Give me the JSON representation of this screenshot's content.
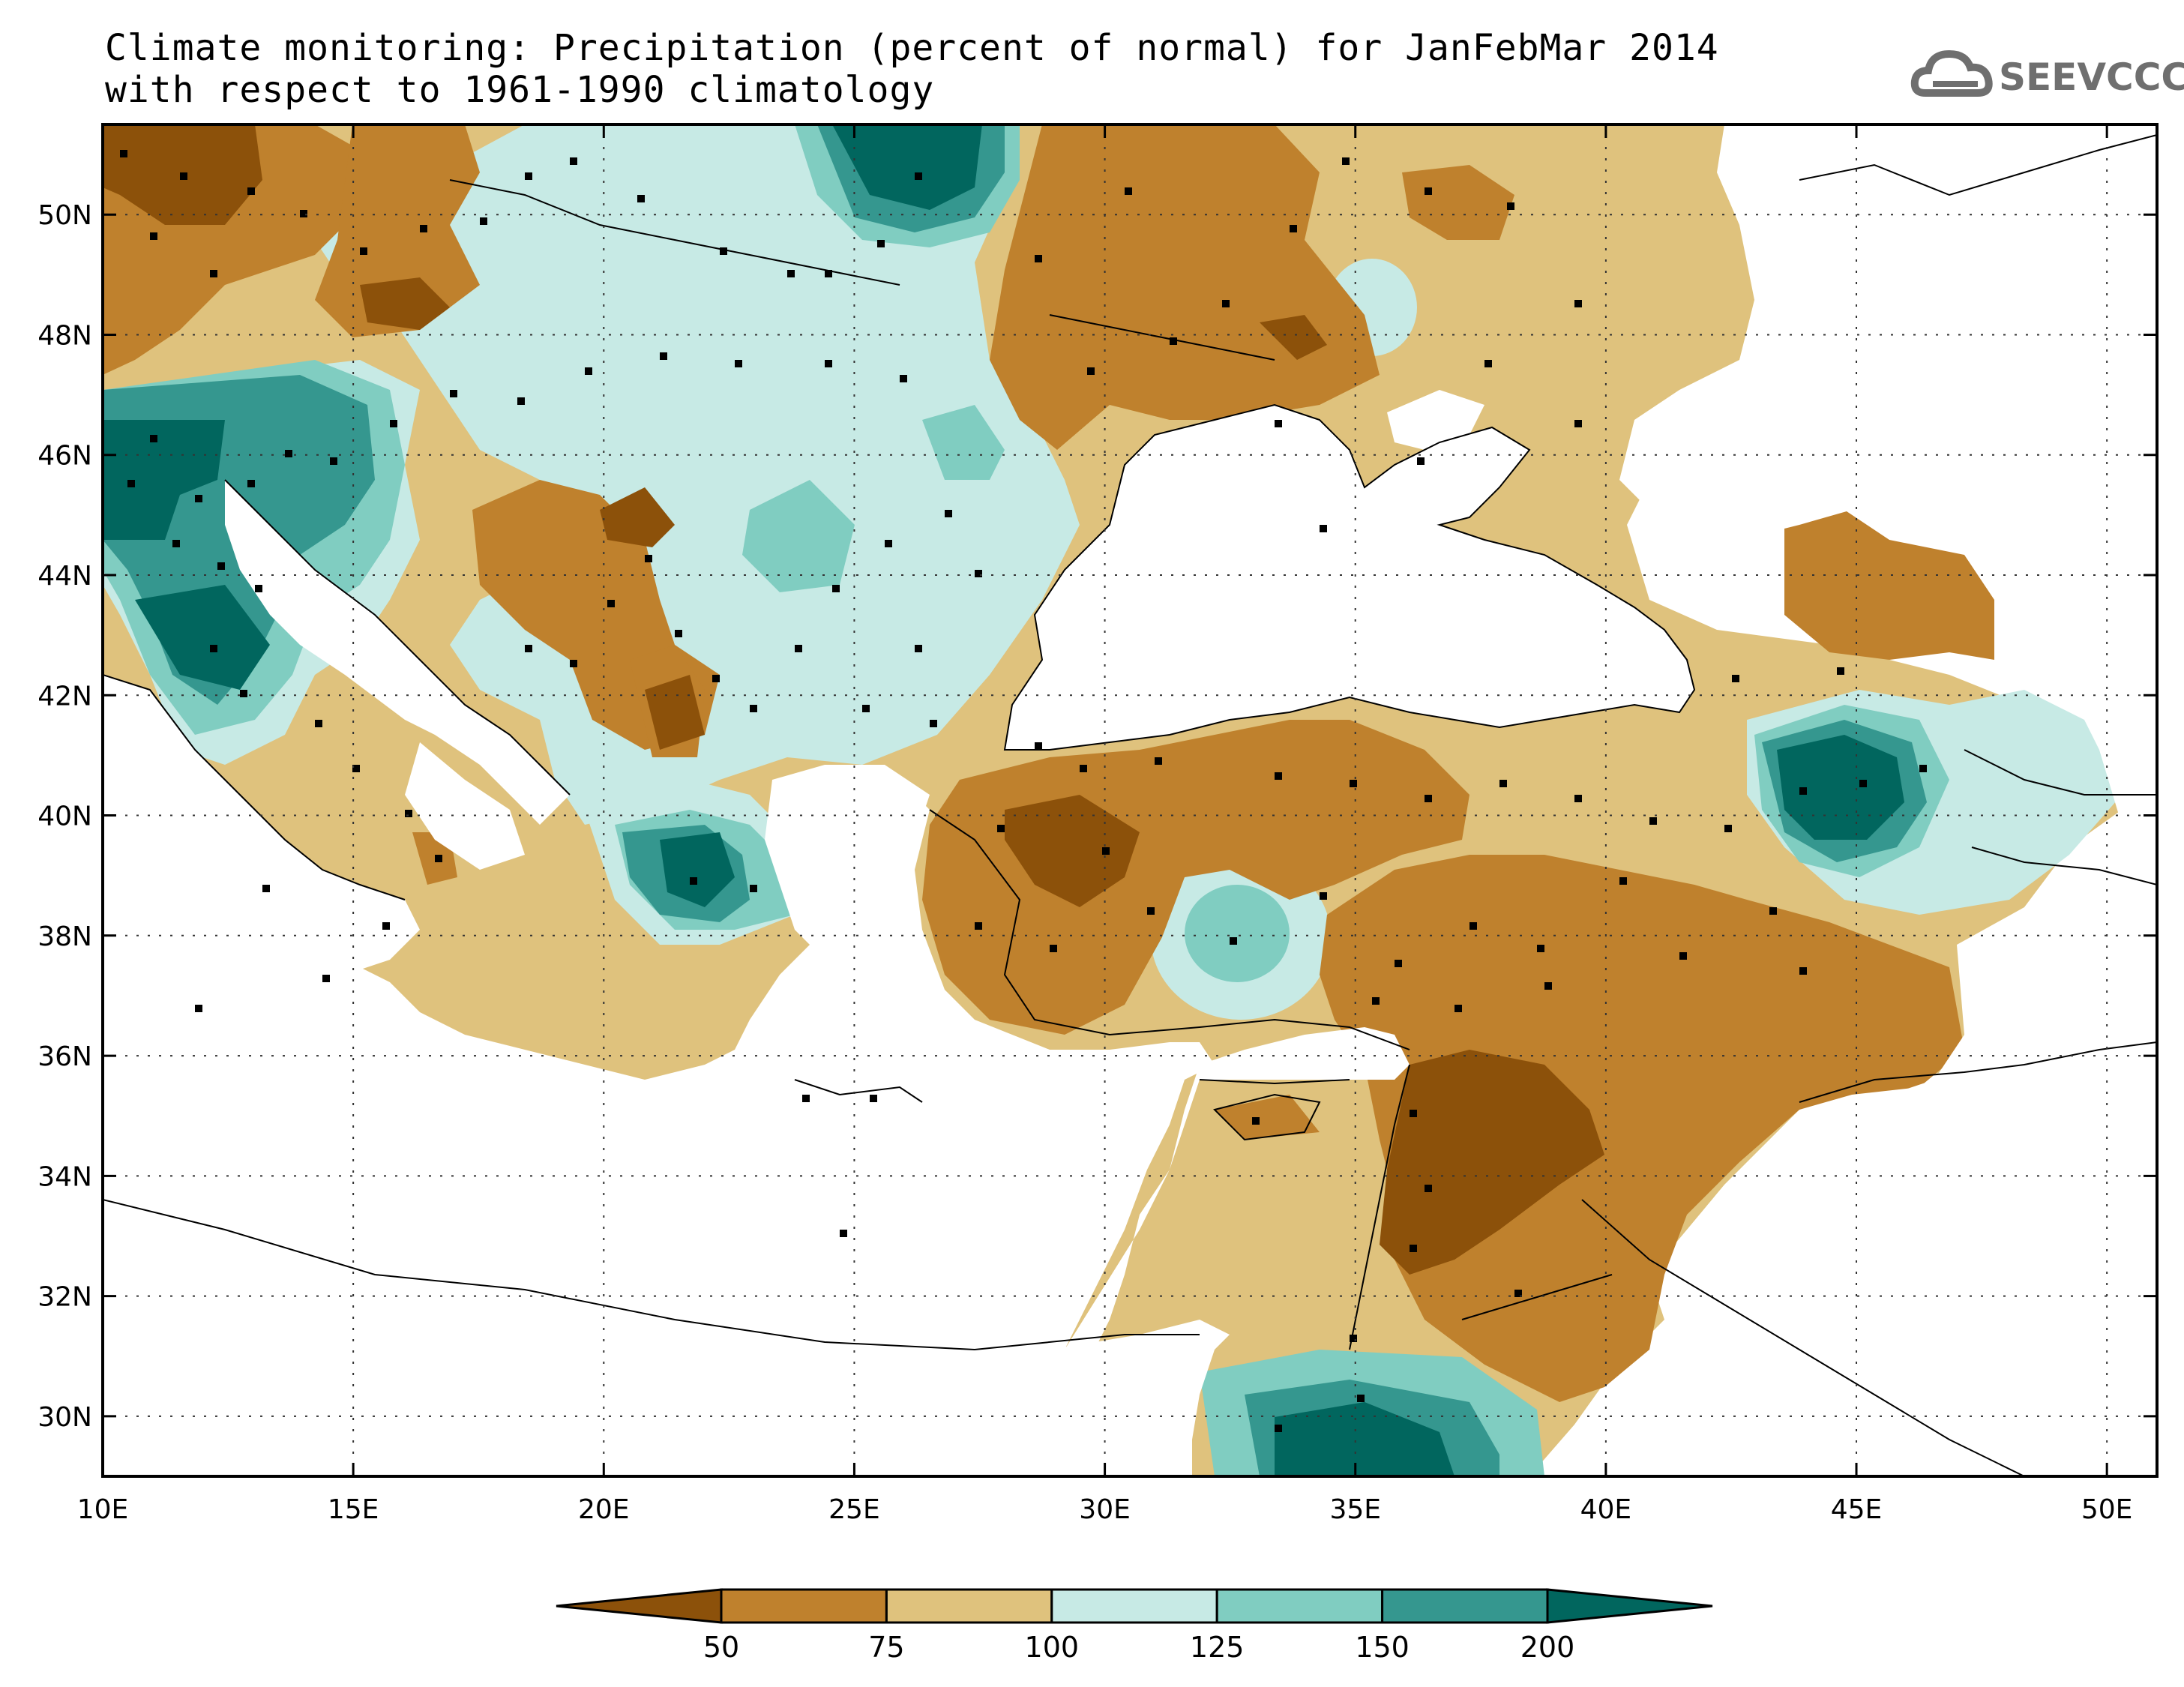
{
  "title": {
    "line1": "Climate monitoring: Precipitation (percent of normal) for JanFebMar 2014",
    "line2": "with respect to 1961-1990 climatology"
  },
  "logo": {
    "text": "SEEVCCC",
    "icon": "cloud-icon"
  },
  "map": {
    "lon_range": [
      10,
      51
    ],
    "lat_range": [
      29,
      51.5
    ],
    "lon_ticks": [
      {
        "value": 10,
        "label": "10E"
      },
      {
        "value": 15,
        "label": "15E"
      },
      {
        "value": 20,
        "label": "20E"
      },
      {
        "value": 25,
        "label": "25E"
      },
      {
        "value": 30,
        "label": "30E"
      },
      {
        "value": 35,
        "label": "35E"
      },
      {
        "value": 40,
        "label": "40E"
      },
      {
        "value": 45,
        "label": "45E"
      },
      {
        "value": 50,
        "label": "50E"
      }
    ],
    "lat_ticks": [
      {
        "value": 30,
        "label": "30N"
      },
      {
        "value": 32,
        "label": "32N"
      },
      {
        "value": 34,
        "label": "34N"
      },
      {
        "value": 36,
        "label": "36N"
      },
      {
        "value": 38,
        "label": "38N"
      },
      {
        "value": 40,
        "label": "40N"
      },
      {
        "value": 42,
        "label": "42N"
      },
      {
        "value": 44,
        "label": "44N"
      },
      {
        "value": 46,
        "label": "46N"
      },
      {
        "value": 48,
        "label": "48N"
      },
      {
        "value": 50,
        "label": "50N"
      }
    ],
    "grid": "dotted"
  },
  "colorbar": {
    "bounds": [
      "50",
      "75",
      "100",
      "125",
      "150",
      "200"
    ],
    "colors": [
      "#8c510a",
      "#bf812d",
      "#dfc27d",
      "#c7eae5",
      "#80cdc1",
      "#35978f",
      "#01665e"
    ]
  }
}
